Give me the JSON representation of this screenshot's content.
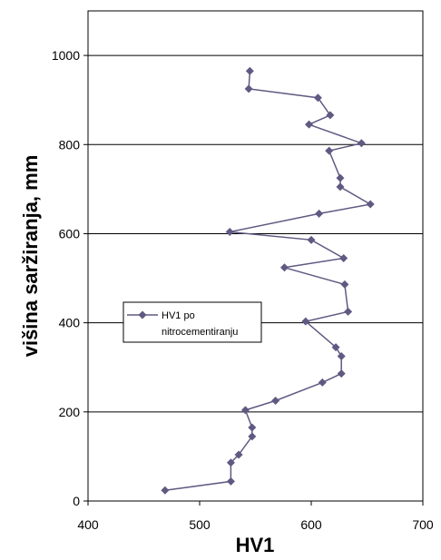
{
  "chart_data": {
    "type": "line",
    "xlabel": "HV1",
    "ylabel": "višina saržiranja, mm",
    "xlim": [
      400,
      700
    ],
    "ylim": [
      0,
      1100
    ],
    "xticks": [
      400,
      500,
      600,
      700
    ],
    "yticks": [
      0,
      200,
      400,
      600,
      800,
      1000
    ],
    "grid": "horizontal",
    "legend_position": "left-middle",
    "series": [
      {
        "name": "HV1 po nitrocementiranju",
        "color": "#5f5a82",
        "marker": "diamond",
        "points": [
          {
            "x": 545,
            "y": 965
          },
          {
            "x": 544,
            "y": 925
          },
          {
            "x": 606,
            "y": 905
          },
          {
            "x": 617,
            "y": 866
          },
          {
            "x": 598,
            "y": 845
          },
          {
            "x": 645,
            "y": 803
          },
          {
            "x": 616,
            "y": 786
          },
          {
            "x": 626,
            "y": 725
          },
          {
            "x": 626,
            "y": 705
          },
          {
            "x": 653,
            "y": 666
          },
          {
            "x": 607,
            "y": 645
          },
          {
            "x": 527,
            "y": 604
          },
          {
            "x": 600,
            "y": 586
          },
          {
            "x": 629,
            "y": 545
          },
          {
            "x": 576,
            "y": 524
          },
          {
            "x": 630,
            "y": 486
          },
          {
            "x": 633,
            "y": 425
          },
          {
            "x": 595,
            "y": 403
          },
          {
            "x": 622,
            "y": 345
          },
          {
            "x": 627,
            "y": 325
          },
          {
            "x": 627,
            "y": 286
          },
          {
            "x": 610,
            "y": 266
          },
          {
            "x": 568,
            "y": 225
          },
          {
            "x": 541,
            "y": 204
          },
          {
            "x": 547,
            "y": 165
          },
          {
            "x": 547,
            "y": 145
          },
          {
            "x": 535,
            "y": 104
          },
          {
            "x": 528,
            "y": 86
          },
          {
            "x": 528,
            "y": 44
          },
          {
            "x": 469,
            "y": 24
          }
        ]
      }
    ]
  }
}
